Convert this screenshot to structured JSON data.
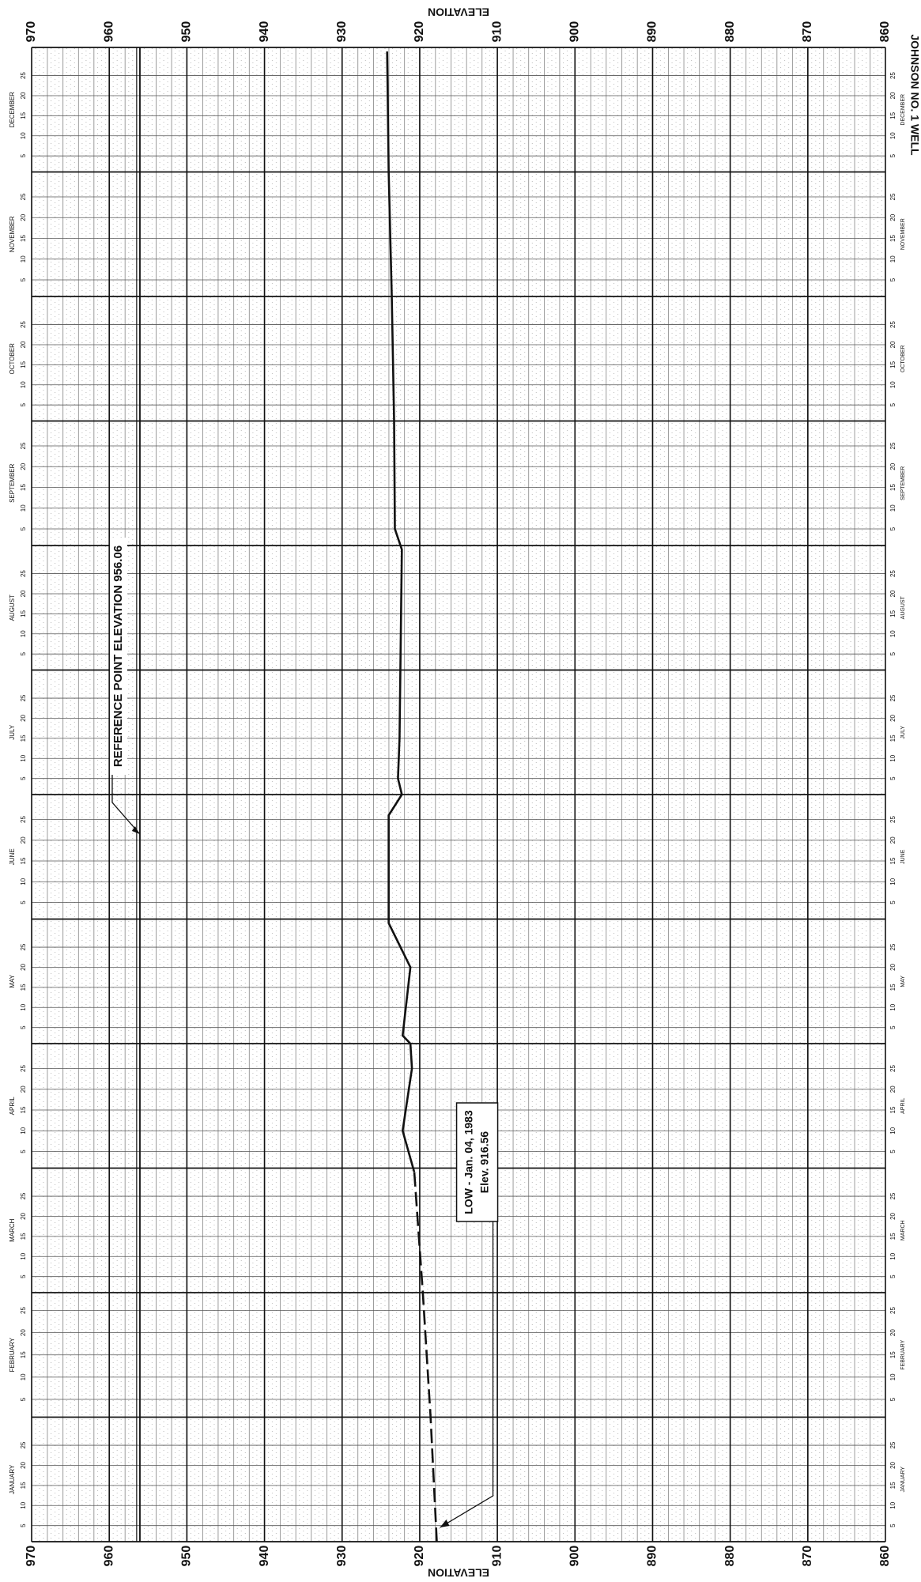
{
  "chart_data": {
    "type": "line",
    "title": "JOHNSON NO. 1 WELL",
    "axis_label": "ELEVATION",
    "months": [
      "JANUARY",
      "FEBRUARY",
      "MARCH",
      "APRIL",
      "MAY",
      "JUNE",
      "JULY",
      "AUGUST",
      "SEPTEMBER",
      "OCTOBER",
      "NOVEMBER",
      "DECEMBER"
    ],
    "day_ticks": [
      5,
      10,
      15,
      20,
      25
    ],
    "ylim": [
      970,
      860
    ],
    "yticks": [
      970,
      960,
      950,
      940,
      930,
      920,
      910,
      900,
      890,
      880,
      870,
      860
    ],
    "grid": true,
    "reference_line": {
      "value": 956.06,
      "label": "REFERENCE POINT ELEVATION 956.06"
    },
    "annotations": [
      {
        "lines": [
          "LOW - Jan. 04, 1983",
          "Elev. 916.56"
        ]
      }
    ],
    "series": [
      {
        "color": "#111111",
        "dash": true,
        "x": [
          "01-01",
          "02-01",
          "03-01",
          "03-31"
        ],
        "values": [
          917.8,
          918.6,
          919.6,
          920.7
        ]
      },
      {
        "color": "#111111",
        "dash": false,
        "x": [
          "03-31",
          "04-10",
          "04-25",
          "05-01",
          "05-03",
          "05-20",
          "05-31",
          "06-26",
          "07-01",
          "07-05",
          "07-15",
          "08-31",
          "09-05",
          "10-01",
          "11-01",
          "12-01",
          "12-31"
        ],
        "values": [
          920.7,
          922.2,
          921.0,
          921.2,
          922.2,
          921.2,
          924.0,
          924.0,
          922.3,
          922.8,
          922.6,
          922.3,
          923.2,
          923.3,
          923.6,
          924.0,
          924.2
        ]
      }
    ]
  }
}
